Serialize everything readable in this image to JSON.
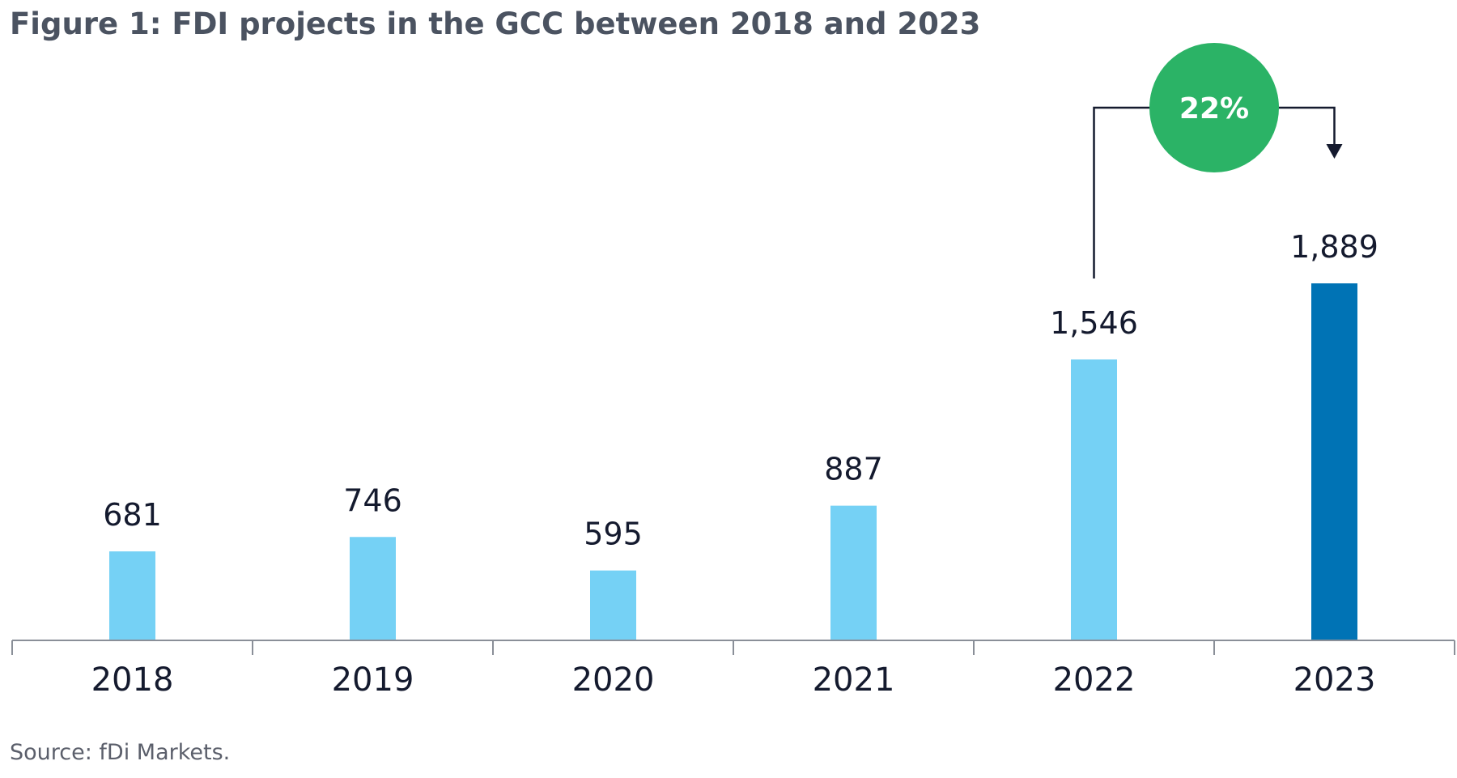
{
  "chart_data": {
    "type": "bar",
    "title": "Figure 1: FDI projects in the GCC between 2018 and 2023",
    "categories": [
      "2018",
      "2019",
      "2020",
      "2021",
      "2022",
      "2023"
    ],
    "values": [
      681,
      746,
      595,
      887,
      1546,
      1889
    ],
    "value_labels": [
      "681",
      "746",
      "595",
      "887",
      "1,546",
      "1,889"
    ],
    "ylim": [
      280,
      1889
    ],
    "grid": false,
    "highlight_category": "2023",
    "annotation": {
      "label": "22%",
      "from": "2022",
      "to": "2023"
    },
    "source": "Source: fDi Markets."
  },
  "colors": {
    "bar": "#75d1f5",
    "highlight_bar": "#0073b5",
    "badge": "#2bb366",
    "text": "#141a2e",
    "axis": "#8a8f98"
  }
}
